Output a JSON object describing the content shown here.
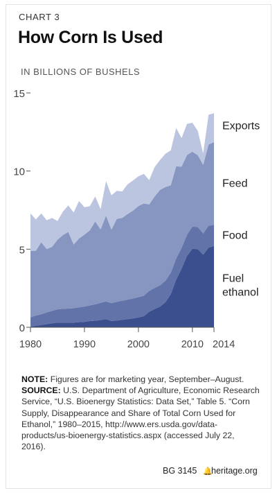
{
  "header": {
    "chart_label": "CHART 3",
    "title": "How Corn Is Used",
    "unit_label": "IN BILLIONS OF BUSHELS"
  },
  "colors": {
    "fuel_ethanol": "#3b4f8e",
    "food": "#6173a8",
    "feed": "#8796c0",
    "exports": "#bcc5df",
    "axis": "#555555"
  },
  "chart_data": {
    "type": "area",
    "stacked": true,
    "x": [
      1980,
      1981,
      1982,
      1983,
      1984,
      1985,
      1986,
      1987,
      1988,
      1989,
      1990,
      1991,
      1992,
      1993,
      1994,
      1995,
      1996,
      1997,
      1998,
      1999,
      2000,
      2001,
      2002,
      2003,
      2004,
      2005,
      2006,
      2007,
      2008,
      2009,
      2010,
      2011,
      2012,
      2013,
      2014
    ],
    "series": [
      {
        "name": "Fuel ethanol",
        "color_key": "fuel_ethanol",
        "values": [
          0.04,
          0.1,
          0.14,
          0.2,
          0.25,
          0.3,
          0.3,
          0.3,
          0.3,
          0.33,
          0.35,
          0.4,
          0.42,
          0.46,
          0.53,
          0.4,
          0.43,
          0.48,
          0.52,
          0.57,
          0.63,
          0.71,
          1.0,
          1.17,
          1.32,
          1.6,
          2.12,
          3.05,
          3.75,
          4.57,
          5.02,
          5.0,
          4.64,
          5.1,
          5.2
        ]
      },
      {
        "name": "Food",
        "color_key": "food",
        "values": [
          0.6,
          0.65,
          0.7,
          0.75,
          0.8,
          0.85,
          0.88,
          0.9,
          0.92,
          0.95,
          0.98,
          1.0,
          1.05,
          1.1,
          1.12,
          1.15,
          1.2,
          1.22,
          1.25,
          1.27,
          1.3,
          1.31,
          1.33,
          1.35,
          1.37,
          1.38,
          1.37,
          1.35,
          1.33,
          1.35,
          1.42,
          1.42,
          1.36,
          1.4,
          1.35
        ]
      },
      {
        "name": "Feed",
        "color_key": "feed",
        "values": [
          4.25,
          4.15,
          4.6,
          4.05,
          4.1,
          4.45,
          4.72,
          4.9,
          4.08,
          4.4,
          4.6,
          4.8,
          5.3,
          4.7,
          5.5,
          4.7,
          5.3,
          5.3,
          5.48,
          5.63,
          5.83,
          5.9,
          5.54,
          5.85,
          6.1,
          6.0,
          5.6,
          5.9,
          5.2,
          5.1,
          4.8,
          4.6,
          4.4,
          5.2,
          5.3
        ]
      },
      {
        "name": "Exports",
        "color_key": "exports",
        "values": [
          2.4,
          2.0,
          1.85,
          1.85,
          1.85,
          1.2,
          1.5,
          1.7,
          2.05,
          2.4,
          1.75,
          1.55,
          1.6,
          1.3,
          2.2,
          2.2,
          1.8,
          1.7,
          1.9,
          1.93,
          1.9,
          1.9,
          1.55,
          1.88,
          1.92,
          2.13,
          2.23,
          2.45,
          1.83,
          2.0,
          1.85,
          1.55,
          0.73,
          1.9,
          1.85
        ]
      }
    ],
    "ylim": [
      0,
      15
    ],
    "yticks": [
      0,
      5,
      10,
      15
    ],
    "xticks": [
      1980,
      1990,
      2000,
      2010,
      2014
    ],
    "grid": false,
    "legend": "right-inline",
    "legend_labels": [
      {
        "series": "Exports",
        "lines": [
          "Exports"
        ]
      },
      {
        "series": "Feed",
        "lines": [
          "Feed"
        ]
      },
      {
        "series": "Food",
        "lines": [
          "Food"
        ]
      },
      {
        "series": "Fuel ethanol",
        "lines": [
          "Fuel",
          "ethanol"
        ]
      }
    ]
  },
  "notes": {
    "note_label": "NOTE:",
    "note_text": "Figures are for marketing year, September–August.",
    "source_label": "SOURCE:",
    "source_text": "U.S. Department of Agriculture, Economic Research Service, “U.S. Bioenergy Statistics: Data Set,” Table 5. “Corn Supply, Disappearance and Share of Total Corn Used for Ethanol,” 1980–2015, http://www.ers.usda.gov/data-products/us-bioenergy-statistics.aspx (accessed July 22, 2016)."
  },
  "footer": {
    "id": "BG 3145",
    "site": "heritage.org"
  }
}
